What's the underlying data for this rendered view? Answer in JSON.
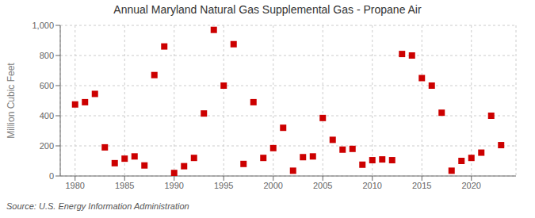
{
  "chart_data": {
    "type": "scatter",
    "title": "Annual Maryland Natural Gas Supplemental Gas - Propane Air",
    "ylabel": "Million Cubic Feet",
    "annotations": [
      "Source: U.S. Energy Information Administration"
    ],
    "x": [
      1980,
      1981,
      1982,
      1983,
      1984,
      1985,
      1986,
      1987,
      1988,
      1989,
      1990,
      1991,
      1992,
      1993,
      1994,
      1995,
      1996,
      1997,
      1998,
      1999,
      2000,
      2001,
      2002,
      2003,
      2004,
      2005,
      2006,
      2007,
      2008,
      2009,
      2010,
      2011,
      2012,
      2013,
      2014,
      2015,
      2016,
      2017,
      2018,
      2019,
      2020,
      2021,
      2022,
      2023
    ],
    "values": [
      475,
      490,
      545,
      190,
      85,
      115,
      130,
      70,
      670,
      860,
      20,
      65,
      120,
      415,
      970,
      600,
      875,
      80,
      490,
      120,
      185,
      320,
      35,
      125,
      130,
      385,
      240,
      175,
      180,
      75,
      105,
      110,
      105,
      810,
      800,
      650,
      600,
      420,
      35,
      100,
      120,
      155,
      400,
      205
    ],
    "color": "#cc0000",
    "marker": "square",
    "xlim": [
      1978.5,
      2024.5
    ],
    "xticks": [
      1980,
      1985,
      1990,
      1995,
      2000,
      2005,
      2010,
      2015,
      2020
    ],
    "ylim": [
      0,
      1000
    ],
    "yticks": [
      0,
      200,
      400,
      600,
      800,
      {
        "value": 1000,
        "label": "1,000"
      }
    ],
    "grid": true
  }
}
